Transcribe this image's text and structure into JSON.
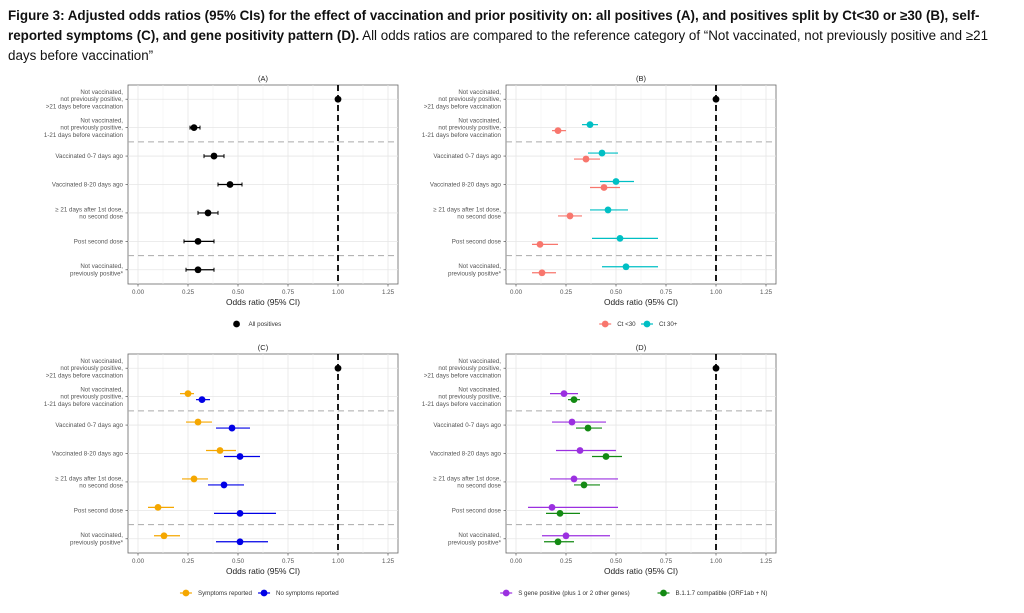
{
  "caption": {
    "bold": "Figure 3: Adjusted odds ratios (95% CIs) for the effect of vaccination and prior positivity on: all positives (A), and positives split by Ct<30 or ≥30 (B), self-reported symptoms (C), and gene positivity pattern (D).",
    "normal": " All odds ratios are compared to the reference category of “Not vaccinated, not previously positive and ≥21 days before vaccination”"
  },
  "chart_data": [
    {
      "type": "scatter",
      "subtype": "forest-plot",
      "title": "(A)",
      "xlabel": "Odds ratio (95% CI)",
      "ylabel": "",
      "xlim": [
        -0.05,
        1.3
      ],
      "xticks": [
        "0.00",
        "0.25",
        "0.50",
        "0.75",
        "1.00",
        "1.25"
      ],
      "xtick_values": [
        0,
        0.25,
        0.5,
        0.75,
        1.0,
        1.25
      ],
      "reference_line": 1.0,
      "grid": true,
      "legend_position": "bottom",
      "categories": [
        "Not vaccinated,\nnot previously positive,\n>21 days before vaccination",
        "Not vaccinated,\nnot previously positive,\n1-21 days before vaccination",
        "Vaccinated 0-7 days ago",
        "Vaccinated 8-20 days ago",
        "≥ 21 days after 1st dose,\nno second dose",
        "Post second dose",
        "Not vaccinated,\npreviously positive*"
      ],
      "separators_after": [
        1,
        5
      ],
      "reference": {
        "value": 1.0,
        "color": "#000000"
      },
      "series": [
        {
          "name": "All positives",
          "color": "#000000",
          "values": [
            null,
            0.28,
            0.38,
            0.46,
            0.35,
            0.3,
            0.3
          ],
          "lower": [
            null,
            0.26,
            0.33,
            0.4,
            0.3,
            0.23,
            0.24
          ],
          "upper": [
            null,
            0.31,
            0.43,
            0.52,
            0.4,
            0.38,
            0.38
          ]
        }
      ]
    },
    {
      "type": "scatter",
      "subtype": "forest-plot",
      "title": "(B)",
      "xlabel": "Odds ratio (95% CI)",
      "ylabel": "",
      "xlim": [
        -0.05,
        1.3
      ],
      "xticks": [
        "0.00",
        "0.25",
        "0.50",
        "0.75",
        "1.00",
        "1.25"
      ],
      "xtick_values": [
        0,
        0.25,
        0.5,
        0.75,
        1.0,
        1.25
      ],
      "reference_line": 1.0,
      "grid": true,
      "legend_position": "bottom",
      "categories": [
        "Not vaccinated,\nnot previously positive,\n>21 days before vaccination",
        "Not vaccinated,\nnot previously positive,\n1-21 days before vaccination",
        "Vaccinated 0-7 days ago",
        "Vaccinated 8-20 days ago",
        "≥ 21 days after 1st dose,\nno second dose",
        "Post second dose",
        "Not vaccinated,\npreviously positive*"
      ],
      "separators_after": [
        1,
        5
      ],
      "reference": {
        "value": 1.0,
        "color": "#000000"
      },
      "series": [
        {
          "name": "Ct <30",
          "color": "#F8766D",
          "values": [
            null,
            0.21,
            0.35,
            0.44,
            0.27,
            0.12,
            0.13
          ],
          "lower": [
            null,
            0.18,
            0.29,
            0.37,
            0.21,
            0.08,
            0.08
          ],
          "upper": [
            null,
            0.25,
            0.42,
            0.52,
            0.33,
            0.21,
            0.2
          ]
        },
        {
          "name": "Ct 30+",
          "color": "#00BFC4",
          "values": [
            null,
            0.37,
            0.43,
            0.5,
            0.46,
            0.52,
            0.55
          ],
          "lower": [
            null,
            0.33,
            0.36,
            0.42,
            0.37,
            0.38,
            0.43
          ],
          "upper": [
            null,
            0.41,
            0.51,
            0.59,
            0.56,
            0.71,
            0.71
          ]
        }
      ]
    },
    {
      "type": "scatter",
      "subtype": "forest-plot",
      "title": "(C)",
      "xlabel": "Odds ratio (95% CI)",
      "ylabel": "",
      "xlim": [
        -0.05,
        1.3
      ],
      "xticks": [
        "0.00",
        "0.25",
        "0.50",
        "0.75",
        "1.00",
        "1.25"
      ],
      "xtick_values": [
        0,
        0.25,
        0.5,
        0.75,
        1.0,
        1.25
      ],
      "reference_line": 1.0,
      "grid": true,
      "legend_position": "bottom",
      "categories": [
        "Not vaccinated,\nnot previously positive,\n>21 days before vaccination",
        "Not vaccinated,\nnot previously positive,\n1-21 days before vaccination",
        "Vaccinated 0-7 days ago",
        "Vaccinated 8-20 days ago",
        "≥ 21 days after 1st dose,\nno second dose",
        "Post second dose",
        "Not vaccinated,\npreviously positive*"
      ],
      "separators_after": [
        1,
        5
      ],
      "reference": {
        "value": 1.0,
        "color": "#000000"
      },
      "series": [
        {
          "name": "Symptoms reported",
          "color": "#F5A700",
          "values": [
            null,
            0.25,
            0.3,
            0.41,
            0.28,
            0.1,
            0.13
          ],
          "lower": [
            null,
            0.21,
            0.24,
            0.34,
            0.22,
            0.05,
            0.08
          ],
          "upper": [
            null,
            0.28,
            0.37,
            0.49,
            0.35,
            0.18,
            0.21
          ]
        },
        {
          "name": "No symptoms reported",
          "color": "#0000E6",
          "values": [
            null,
            0.32,
            0.47,
            0.51,
            0.43,
            0.51,
            0.51
          ],
          "lower": [
            null,
            0.29,
            0.39,
            0.43,
            0.35,
            0.38,
            0.39
          ],
          "upper": [
            null,
            0.36,
            0.56,
            0.61,
            0.53,
            0.69,
            0.65
          ]
        }
      ]
    },
    {
      "type": "scatter",
      "subtype": "forest-plot",
      "title": "(D)",
      "xlabel": "Odds ratio (95% CI)",
      "ylabel": "",
      "xlim": [
        -0.05,
        1.3
      ],
      "xticks": [
        "0.00",
        "0.25",
        "0.50",
        "0.75",
        "1.00",
        "1.25"
      ],
      "xtick_values": [
        0,
        0.25,
        0.5,
        0.75,
        1.0,
        1.25
      ],
      "reference_line": 1.0,
      "grid": true,
      "legend_position": "bottom",
      "categories": [
        "Not vaccinated,\nnot previously positive,\n>21 days before vaccination",
        "Not vaccinated,\nnot previously positive,\n1-21 days before vaccination",
        "Vaccinated 0-7 days ago",
        "Vaccinated 8-20 days ago",
        "≥ 21 days after 1st dose,\nno second dose",
        "Post second dose",
        "Not vaccinated,\npreviously positive*"
      ],
      "separators_after": [
        1,
        5
      ],
      "reference": {
        "value": 1.0,
        "color": "#000000"
      },
      "series": [
        {
          "name": "S gene positive (plus 1 or 2 other genes)",
          "color": "#9B30E0",
          "values": [
            null,
            0.24,
            0.28,
            0.32,
            0.29,
            0.18,
            0.25
          ],
          "lower": [
            null,
            0.17,
            0.18,
            0.2,
            0.17,
            0.06,
            0.13
          ],
          "upper": [
            null,
            0.31,
            0.45,
            0.5,
            0.51,
            0.51,
            0.47
          ]
        },
        {
          "name": "B.1.1.7 compatible (ORF1ab + N)",
          "color": "#138A13",
          "values": [
            null,
            0.29,
            0.36,
            0.45,
            0.34,
            0.22,
            0.21
          ],
          "lower": [
            null,
            0.26,
            0.3,
            0.38,
            0.29,
            0.15,
            0.14
          ],
          "upper": [
            null,
            0.32,
            0.43,
            0.53,
            0.42,
            0.32,
            0.29
          ]
        }
      ]
    }
  ]
}
